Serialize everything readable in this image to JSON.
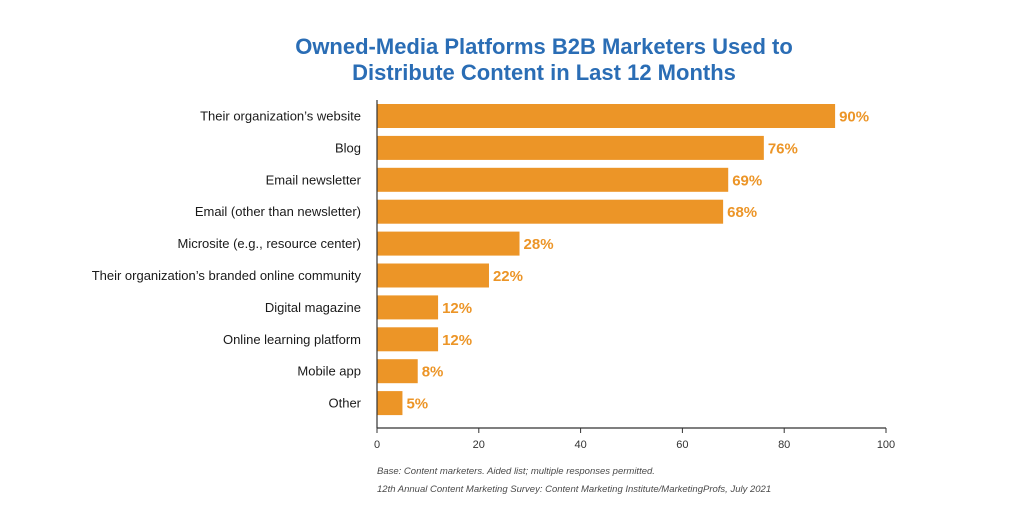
{
  "chart_data": {
    "type": "bar",
    "orientation": "horizontal",
    "title": "Owned-Media Platforms B2B Marketers Used to\nDistribute Content in Last 12 Months",
    "categories": [
      "Their organization’s website",
      "Blog",
      "Email newsletter",
      "Email (other than newsletter)",
      "Microsite (e.g., resource center)",
      "Their organization’s branded online community",
      "Digital magazine",
      "Online learning platform",
      "Mobile app",
      "Other"
    ],
    "values": [
      90,
      76,
      69,
      68,
      28,
      22,
      12,
      12,
      8,
      5
    ],
    "value_labels": [
      "90%",
      "76%",
      "69%",
      "68%",
      "28%",
      "22%",
      "12%",
      "12%",
      "8%",
      "5%"
    ],
    "xlim": [
      0,
      100
    ],
    "xticks": [
      0,
      20,
      40,
      60,
      80,
      100
    ],
    "xlabel": "",
    "ylabel": "",
    "grid": false,
    "bar_color": "#ec9527",
    "label_color": "#ec9527",
    "title_color": "#2a6db5",
    "notes": {
      "base": "Base: Content marketers. Aided list; multiple responses permitted.",
      "source": "12th Annual Content Marketing Survey: Content Marketing Institute/MarketingProfs, July 2021"
    }
  }
}
